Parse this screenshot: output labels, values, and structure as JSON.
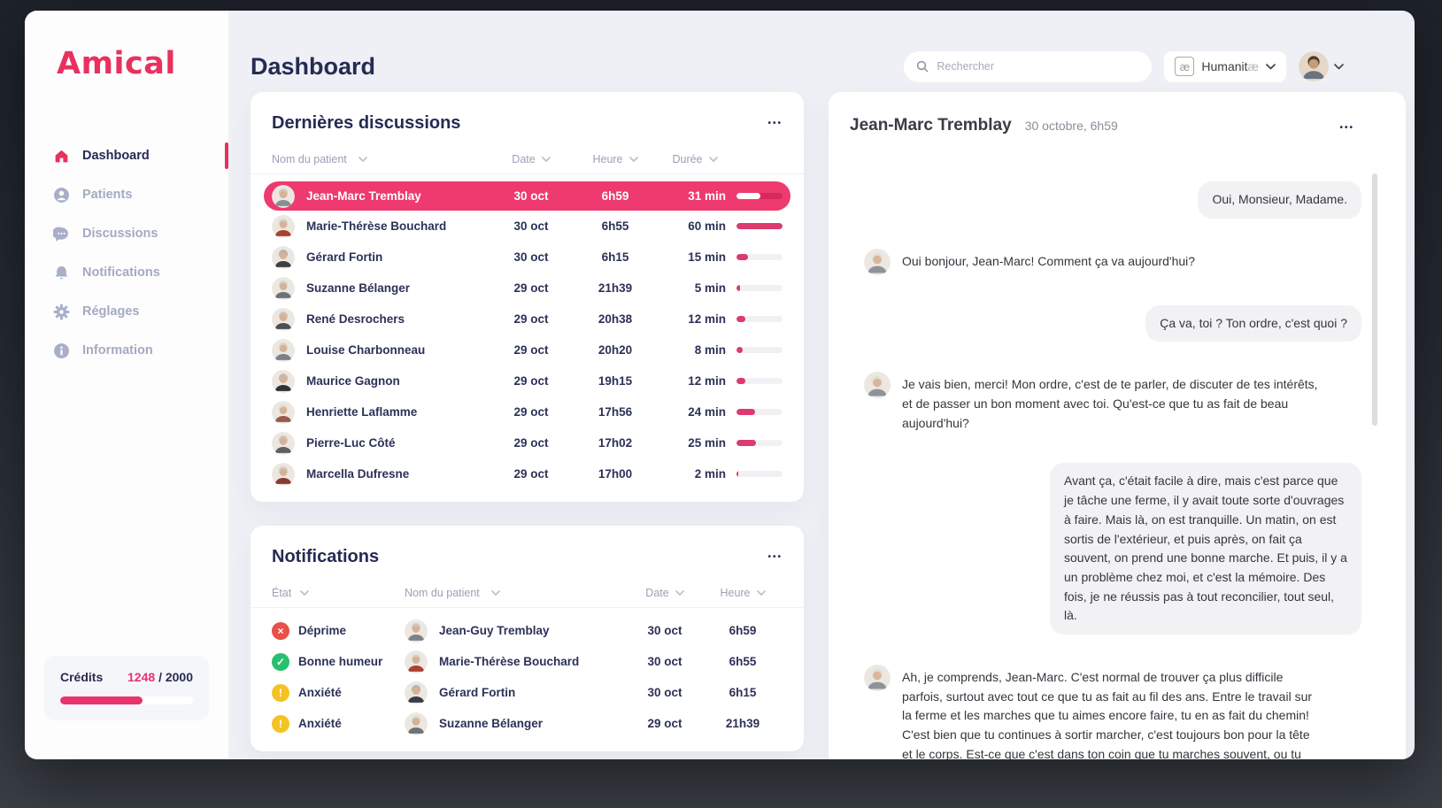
{
  "brand": {
    "logo": "Amical"
  },
  "sidebar": {
    "items": [
      {
        "label": "Dashboard",
        "icon": "home-icon",
        "active": true
      },
      {
        "label": "Patients",
        "icon": "patients-icon",
        "active": false
      },
      {
        "label": "Discussions",
        "icon": "discussions-icon",
        "active": false
      },
      {
        "label": "Notifications",
        "icon": "bell-icon",
        "active": false
      },
      {
        "label": "Réglages",
        "icon": "gear-icon",
        "active": false
      },
      {
        "label": "Information",
        "icon": "info-icon",
        "active": false
      }
    ],
    "credits": {
      "label": "Crédits",
      "used": "1248",
      "separator": "/",
      "total": "2000",
      "used_num": 1248,
      "total_num": 2000
    }
  },
  "header": {
    "title": "Dashboard",
    "search_placeholder": "Rechercher",
    "lang": {
      "icon_label": "æ",
      "label_main": "Humanit",
      "label_tail": "æ"
    }
  },
  "discussions": {
    "title": "Dernières discussions",
    "menu_icon": "•••",
    "columns": [
      "Nom du patient",
      "Date",
      "Heure",
      "Durée"
    ],
    "max_duration_min": 60,
    "rows": [
      {
        "name": "Jean-Marc Tremblay",
        "date": "30 oct",
        "heure": "6h59",
        "duree": "31 min",
        "duree_min": 31,
        "selected": true
      },
      {
        "name": "Marie-Thérèse Bouchard",
        "date": "30 oct",
        "heure": "6h55",
        "duree": "60 min",
        "duree_min": 60,
        "selected": false
      },
      {
        "name": "Gérard Fortin",
        "date": "30 oct",
        "heure": "6h15",
        "duree": "15 min",
        "duree_min": 15,
        "selected": false
      },
      {
        "name": "Suzanne Bélanger",
        "date": "29 oct",
        "heure": "21h39",
        "duree": "5 min",
        "duree_min": 5,
        "selected": false
      },
      {
        "name": "René Desrochers",
        "date": "29 oct",
        "heure": "20h38",
        "duree": "12 min",
        "duree_min": 12,
        "selected": false
      },
      {
        "name": "Louise Charbonneau",
        "date": "29 oct",
        "heure": "20h20",
        "duree": "8 min",
        "duree_min": 8,
        "selected": false
      },
      {
        "name": "Maurice Gagnon",
        "date": "29 oct",
        "heure": "19h15",
        "duree": "12 min",
        "duree_min": 12,
        "selected": false
      },
      {
        "name": "Henriette Laflamme",
        "date": "29 oct",
        "heure": "17h56",
        "duree": "24 min",
        "duree_min": 24,
        "selected": false
      },
      {
        "name": "Pierre-Luc Côté",
        "date": "29 oct",
        "heure": "17h02",
        "duree": "25 min",
        "duree_min": 25,
        "selected": false
      },
      {
        "name": "Marcella Dufresne",
        "date": "29 oct",
        "heure": "17h00",
        "duree": "2 min",
        "duree_min": 2,
        "selected": false
      }
    ]
  },
  "notifications": {
    "title": "Notifications",
    "menu_icon": "•••",
    "columns": [
      "État",
      "Nom du patient",
      "Date",
      "Heure"
    ],
    "rows": [
      {
        "status": "error",
        "status_label": "Déprime",
        "name": "Jean-Guy Tremblay",
        "date": "30 oct",
        "heure": "6h59"
      },
      {
        "status": "success",
        "status_label": "Bonne humeur",
        "name": "Marie-Thérèse Bouchard",
        "date": "30 oct",
        "heure": "6h55"
      },
      {
        "status": "warning",
        "status_label": "Anxiété",
        "name": "Gérard Fortin",
        "date": "30 oct",
        "heure": "6h15"
      },
      {
        "status": "warning",
        "status_label": "Anxiété",
        "name": "Suzanne Bélanger",
        "date": "29 oct",
        "heure": "21h39"
      }
    ],
    "status_colors": {
      "error": "#e8504a",
      "success": "#27c06d",
      "warning": "#f5c223"
    }
  },
  "chat": {
    "name": "Jean-Marc Tremblay",
    "date": "30 octobre, 6h59",
    "menu_icon": "•••",
    "messages": [
      {
        "side": "out",
        "text": "Oui, Monsieur, Madame."
      },
      {
        "side": "in",
        "text": "Oui bonjour, Jean-Marc! Comment ça va aujourd'hui?"
      },
      {
        "side": "out",
        "text": "Ça va, toi ? Ton ordre, c'est quoi ?"
      },
      {
        "side": "in",
        "text": "Je vais bien, merci! Mon ordre, c'est de te parler, de discuter de tes intérêts, et de passer un bon moment avec toi. Qu'est-ce que tu as fait de beau aujourd'hui?"
      },
      {
        "side": "out",
        "text": "Avant ça, c'était facile à dire, mais c'est parce que je tâche une ferme, il y avait toute sorte d'ouvrages à faire. Mais là, on est tranquille. Un matin, on est sortis de l'extérieur, et puis après, on fait ça souvent, on prend une bonne marche. Et puis, il y a un problème chez moi, et c'est la mémoire. Des fois, je ne réussis pas à tout reconcilier, tout seul, là."
      },
      {
        "side": "in",
        "text": "Ah, je comprends, Jean-Marc. C'est normal de trouver ça plus difficile parfois, surtout avec tout ce que tu as fait au fil des ans. Entre le travail sur la ferme et les marches que tu aimes encore faire, tu en as fait du chemin! C'est bien que tu continues à sortir marcher, c'est toujours bon pour la tête et le corps. Est-ce que c'est dans ton coin que tu marches souvent, ou tu aimes changer d'endroit?"
      }
    ]
  },
  "colors": {
    "accent": "#ee3a6e",
    "navy": "#252b52",
    "status_red": "#e8504a",
    "status_green": "#27c06d",
    "status_yellow": "#f5c223"
  }
}
